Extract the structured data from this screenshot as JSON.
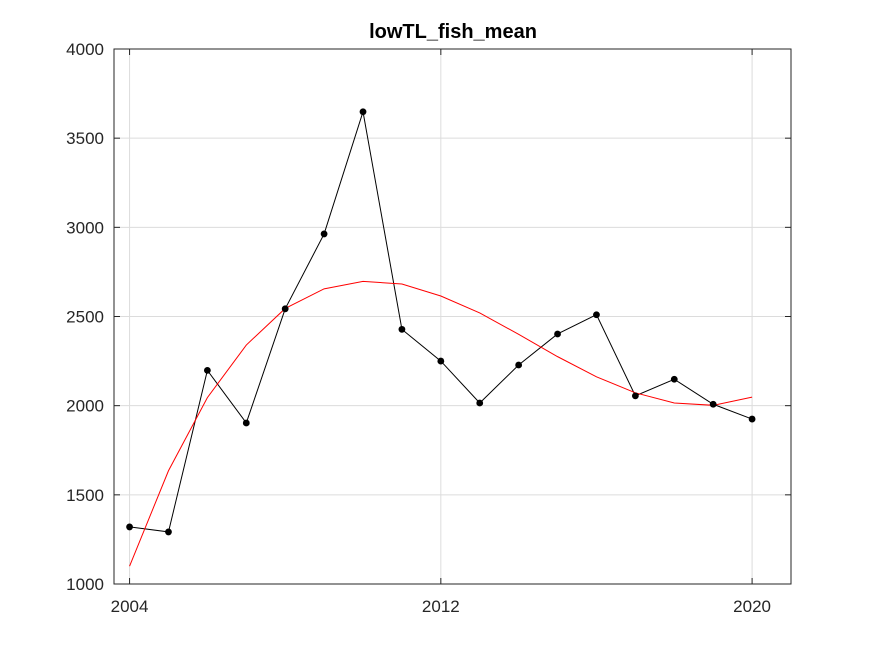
{
  "chart_data": {
    "type": "line",
    "title": "lowTL_fish_mean",
    "xlabel": "",
    "ylabel": "",
    "xlim": [
      2003.6,
      2021.0
    ],
    "ylim": [
      1000,
      4000
    ],
    "xticks": [
      2004,
      2012,
      2020
    ],
    "yticks": [
      1000,
      1500,
      2000,
      2500,
      3000,
      3500,
      4000
    ],
    "grid": true,
    "series": [
      {
        "color": "#000000",
        "marker": "circle",
        "x": [
          2004,
          2005,
          2006,
          2007,
          2008,
          2009,
          2010,
          2011,
          2012,
          2013,
          2014,
          2015,
          2016,
          2017,
          2018,
          2019,
          2020
        ],
        "y": [
          1320,
          1292,
          2198,
          1903,
          2543,
          2963,
          3648,
          2428,
          2250,
          2015,
          2228,
          2402,
          2510,
          2055,
          2148,
          2008,
          1925
        ]
      },
      {
        "color": "#ff0000",
        "marker": "none",
        "x": [
          2004,
          2005,
          2006,
          2007,
          2008,
          2009,
          2010,
          2011,
          2012,
          2013,
          2014,
          2015,
          2016,
          2017,
          2018,
          2019,
          2020
        ],
        "y": [
          1100,
          1635,
          2045,
          2340,
          2545,
          2655,
          2697,
          2682,
          2615,
          2520,
          2400,
          2275,
          2162,
          2072,
          2015,
          2002,
          2048
        ]
      }
    ]
  }
}
